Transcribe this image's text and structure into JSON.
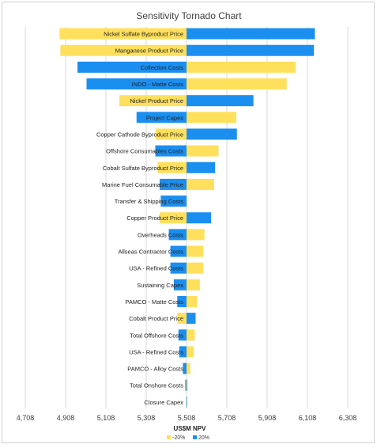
{
  "chart_data": {
    "type": "bar",
    "orientation": "horizontal",
    "title": "Sensitivity Tornado Chart",
    "xlabel": "US$M NPV",
    "ylabel": "",
    "base": 5508,
    "xlim": [
      4708,
      6308
    ],
    "xticks": [
      4708,
      4908,
      5108,
      5308,
      5508,
      5708,
      5908,
      6108,
      6308
    ],
    "tick_labels": [
      "4,708",
      "4,908",
      "5,108",
      "5,308",
      "5,508",
      "5,708",
      "5,908",
      "6,108",
      "6,308"
    ],
    "grid": true,
    "legend_position": "bottom",
    "categories": [
      "Nickel Sulfate Byproduct Price",
      "Manganese Product Price",
      "Collection Costs",
      "INDO - Matte Costs",
      "Nickel Product Price",
      "Project Capex",
      "Copper Cathode Byproduct Price",
      "Offshore Consumables Costs",
      "Cobalt Sulfate Byproduct Price",
      "Marine Fuel Consumable Price",
      "Transfer & Shipping Costs",
      "Copper Product Price",
      "Overheads Costs",
      "Allseas Contractor Costs",
      "USA - Refined Costs",
      "Sustaining Capex",
      "PAMCO - Matte Costs",
      "Cobalt Product Price",
      "Total Offshore Costs",
      "USA - Refined Costs",
      "PAMCO - Alloy Costs",
      "Total Onshore Costs",
      "Closure Capex"
    ],
    "series": [
      {
        "name": "-20%",
        "color": "#ffe05c",
        "values": [
          4878,
          4882,
          6050,
          6005,
          5175,
          5755,
          5355,
          5667,
          5365,
          5645,
          5400,
          5375,
          5597,
          5592,
          5592,
          5574,
          5560,
          5462,
          5549,
          5544,
          5527,
          5515,
          5509
        ]
      },
      {
        "name": "20%",
        "color": "#1b8ff0",
        "values": [
          6145,
          6140,
          4967,
          5012,
          5840,
          5260,
          5758,
          5353,
          5650,
          5375,
          5380,
          5630,
          5420,
          5428,
          5428,
          5445,
          5462,
          5553,
          5468,
          5472,
          5490,
          5502,
          5507
        ]
      }
    ]
  }
}
